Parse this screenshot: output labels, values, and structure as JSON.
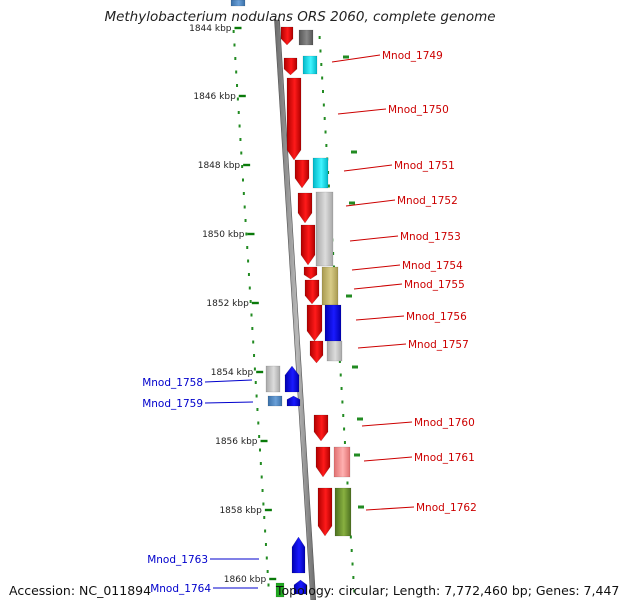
{
  "title": "Methylobacterium nodulans ORS 2060, complete genome",
  "footer": {
    "accession": "Accession: NC_011894",
    "summary": "Topology: circular; Length: 7,772,460 bp; Genes: 7,447"
  },
  "ticks": [
    "1844 kbp",
    "1846 kbp",
    "1848 kbp",
    "1850 kbp",
    "1852 kbp",
    "1854 kbp",
    "1856 kbp",
    "1858 kbp",
    "1860 kbp"
  ],
  "genes_right": [
    {
      "label": "Mnod_1749",
      "color": "#cc0000"
    },
    {
      "label": "Mnod_1750",
      "color": "#cc0000"
    },
    {
      "label": "Mnod_1751",
      "color": "#cc0000"
    },
    {
      "label": "Mnod_1752",
      "color": "#cc0000"
    },
    {
      "label": "Mnod_1753",
      "color": "#cc0000"
    },
    {
      "label": "Mnod_1754",
      "color": "#cc0000"
    },
    {
      "label": "Mnod_1755",
      "color": "#cc0000"
    },
    {
      "label": "Mnod_1756",
      "color": "#cc0000"
    },
    {
      "label": "Mnod_1757",
      "color": "#cc0000"
    },
    {
      "label": "Mnod_1760",
      "color": "#cc0000"
    },
    {
      "label": "Mnod_1761",
      "color": "#cc0000"
    },
    {
      "label": "Mnod_1762",
      "color": "#cc0000"
    }
  ],
  "genes_left": [
    {
      "label": "Mnod_1758",
      "color": "#0000cc"
    },
    {
      "label": "Mnod_1759",
      "color": "#0000cc"
    },
    {
      "label": "Mnod_1763",
      "color": "#0000cc"
    },
    {
      "label": "Mnod_1764",
      "color": "#0000cc"
    }
  ]
}
